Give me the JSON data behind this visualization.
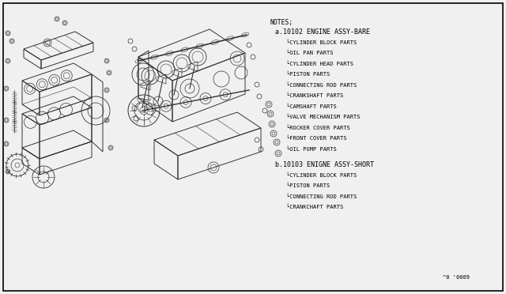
{
  "background_color": "#f0f0f0",
  "border_color": "#000000",
  "notes_header": "NOTES;",
  "section_a_header": "a.10102 ENGINE ASSY-BARE",
  "section_a_items": [
    "CYLINDER BLOCK PARTS",
    "OIL PAN PARTS",
    "CYLINDER HEAD PARTS",
    "PISTON PARTS",
    "CONNECTING ROD PARTS",
    "CRANKSHAFT PARTS",
    "CAMSHAFT PARTS",
    "VALVE MECHANISM PARTS",
    "ROCKER COVER PARTS",
    "FRONT COVER PARTS",
    "OIL PUMP PARTS"
  ],
  "section_b_header": "b.10103 ENIGNE ASSY-SHORT",
  "section_b_items": [
    "CYLINDER BLOCK PARTS",
    "PISTON PARTS",
    "CONNECTING ROD PARTS",
    "CRANKCHAFT PARTS"
  ],
  "figure_number": "^0 '0009",
  "text_color": "#000000",
  "diagram_color": "#333333",
  "font_size_notes": 5.8,
  "font_size_section": 6.0,
  "font_size_items": 5.0,
  "font_size_figure": 5.0
}
